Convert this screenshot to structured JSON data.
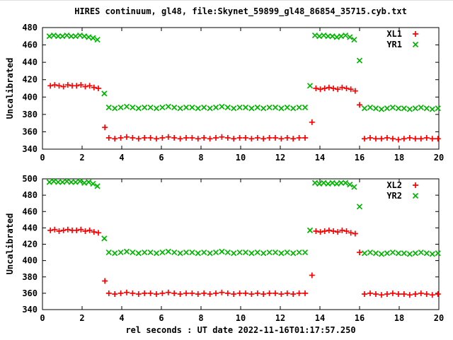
{
  "figure": {
    "title": "HIRES continuum, gl48, file:Skynet_59899_gl48_86854_35715.cyb.txt",
    "xlabel": "rel seconds : UT date 2022-11-16T01:17:57.250",
    "background": "#ffffff"
  },
  "colors": {
    "red": "#ff0000",
    "green": "#00b400",
    "axis": "#000000"
  },
  "chart_data": [
    {
      "type": "scatter",
      "panel": "top",
      "ylabel": "Uncalibrated",
      "xlim": [
        0,
        20
      ],
      "ylim": [
        340,
        480
      ],
      "xticks": [
        0,
        2,
        4,
        6,
        8,
        10,
        12,
        14,
        16,
        18,
        20
      ],
      "yticks": [
        340,
        360,
        380,
        400,
        420,
        440,
        460,
        480
      ],
      "grid": false,
      "legend_position": "top-right-inside",
      "series": [
        {
          "name": "XL1",
          "marker": "plus",
          "color": "#ff0000",
          "segments": [
            {
              "x0": 0.4,
              "dx": 0.22,
              "y": [
                413,
                414,
                413,
                412,
                414,
                413,
                413,
                414,
                412,
                413,
                411,
                410
              ]
            },
            {
              "x0": 3.15,
              "dx": 0,
              "y": [
                365
              ]
            },
            {
              "x0": 3.35,
              "dx": 0.3,
              "y": [
                353,
                352,
                353,
                354,
                353,
                352,
                353,
                353,
                352,
                353,
                354,
                353,
                352,
                353,
                353,
                352,
                353,
                352,
                353,
                354,
                353,
                352,
                353,
                353,
                352,
                353,
                352,
                353,
                353,
                352,
                353,
                352,
                353,
                353
              ]
            },
            {
              "x0": 13.6,
              "dx": 0,
              "y": [
                371
              ]
            },
            {
              "x0": 13.8,
              "dx": 0.22,
              "y": [
                410,
                409,
                410,
                411,
                410,
                409,
                411,
                410,
                409,
                407
              ]
            },
            {
              "x0": 16.0,
              "dx": 0,
              "y": [
                391
              ]
            },
            {
              "x0": 16.25,
              "dx": 0.285,
              "y": [
                352,
                353,
                352,
                352,
                353,
                352,
                351,
                352,
                353,
                352,
                352,
                353,
                352,
                352
              ]
            }
          ]
        },
        {
          "name": "YR1",
          "marker": "cross",
          "color": "#00b400",
          "segments": [
            {
              "x0": 0.35,
              "dx": 0.22,
              "y": [
                470,
                471,
                470,
                470,
                471,
                470,
                470,
                471,
                470,
                469,
                468,
                466
              ]
            },
            {
              "x0": 3.12,
              "dx": 0,
              "y": [
                404
              ]
            },
            {
              "x0": 3.35,
              "dx": 0.3,
              "y": [
                388,
                387,
                388,
                389,
                388,
                387,
                388,
                388,
                387,
                388,
                389,
                388,
                387,
                388,
                388,
                387,
                388,
                387,
                388,
                389,
                388,
                387,
                388,
                388,
                387,
                388,
                387,
                388,
                388,
                387,
                388,
                387,
                388,
                388
              ]
            },
            {
              "x0": 13.5,
              "dx": 0,
              "y": [
                413
              ]
            },
            {
              "x0": 13.75,
              "dx": 0.22,
              "y": [
                471,
                470,
                471,
                470,
                470,
                469,
                470,
                471,
                469,
                466
              ]
            },
            {
              "x0": 16.0,
              "dx": 0,
              "y": [
                442
              ]
            },
            {
              "x0": 16.25,
              "dx": 0.285,
              "y": [
                387,
                388,
                387,
                386,
                387,
                388,
                387,
                387,
                386,
                387,
                388,
                387,
                386,
                387
              ]
            }
          ]
        }
      ]
    },
    {
      "type": "scatter",
      "panel": "bottom",
      "ylabel": "Uncalibrated",
      "xlim": [
        0,
        20
      ],
      "ylim": [
        340,
        500
      ],
      "xticks": [
        0,
        2,
        4,
        6,
        8,
        10,
        12,
        14,
        16,
        18,
        20
      ],
      "yticks": [
        340,
        360,
        380,
        400,
        420,
        440,
        460,
        480,
        500
      ],
      "grid": false,
      "legend_position": "top-right-inside",
      "series": [
        {
          "name": "XL2",
          "marker": "plus",
          "color": "#ff0000",
          "segments": [
            {
              "x0": 0.4,
              "dx": 0.22,
              "y": [
                437,
                438,
                436,
                437,
                438,
                437,
                437,
                438,
                436,
                437,
                435,
                434
              ]
            },
            {
              "x0": 3.15,
              "dx": 0,
              "y": [
                375
              ]
            },
            {
              "x0": 3.35,
              "dx": 0.3,
              "y": [
                360,
                359,
                360,
                361,
                360,
                359,
                360,
                360,
                359,
                360,
                361,
                360,
                359,
                360,
                360,
                359,
                360,
                359,
                360,
                361,
                360,
                359,
                360,
                360,
                359,
                360,
                359,
                360,
                360,
                359,
                360,
                359,
                360,
                360
              ]
            },
            {
              "x0": 13.6,
              "dx": 0,
              "y": [
                382
              ]
            },
            {
              "x0": 13.8,
              "dx": 0.22,
              "y": [
                436,
                435,
                436,
                437,
                436,
                435,
                437,
                436,
                434,
                433
              ]
            },
            {
              "x0": 16.0,
              "dx": 0,
              "y": [
                410
              ]
            },
            {
              "x0": 16.25,
              "dx": 0.285,
              "y": [
                359,
                360,
                359,
                358,
                359,
                360,
                359,
                359,
                358,
                359,
                360,
                359,
                358,
                359
              ]
            }
          ]
        },
        {
          "name": "YR2",
          "marker": "cross",
          "color": "#00b400",
          "segments": [
            {
              "x0": 0.35,
              "dx": 0.22,
              "y": [
                496,
                497,
                496,
                496,
                497,
                496,
                496,
                497,
                495,
                496,
                494,
                491
              ]
            },
            {
              "x0": 3.12,
              "dx": 0,
              "y": [
                427
              ]
            },
            {
              "x0": 3.35,
              "dx": 0.3,
              "y": [
                410,
                409,
                410,
                411,
                410,
                409,
                410,
                410,
                409,
                410,
                411,
                410,
                409,
                410,
                410,
                409,
                410,
                409,
                410,
                411,
                410,
                409,
                410,
                410,
                409,
                410,
                409,
                410,
                410,
                409,
                410,
                409,
                410,
                410
              ]
            },
            {
              "x0": 13.5,
              "dx": 0,
              "y": [
                437
              ]
            },
            {
              "x0": 13.75,
              "dx": 0.22,
              "y": [
                495,
                494,
                495,
                494,
                495,
                494,
                495,
                495,
                493,
                490
              ]
            },
            {
              "x0": 16.0,
              "dx": 0,
              "y": [
                466
              ]
            },
            {
              "x0": 16.25,
              "dx": 0.285,
              "y": [
                409,
                410,
                409,
                408,
                409,
                410,
                409,
                409,
                408,
                409,
                410,
                409,
                408,
                409
              ]
            }
          ]
        }
      ]
    }
  ]
}
